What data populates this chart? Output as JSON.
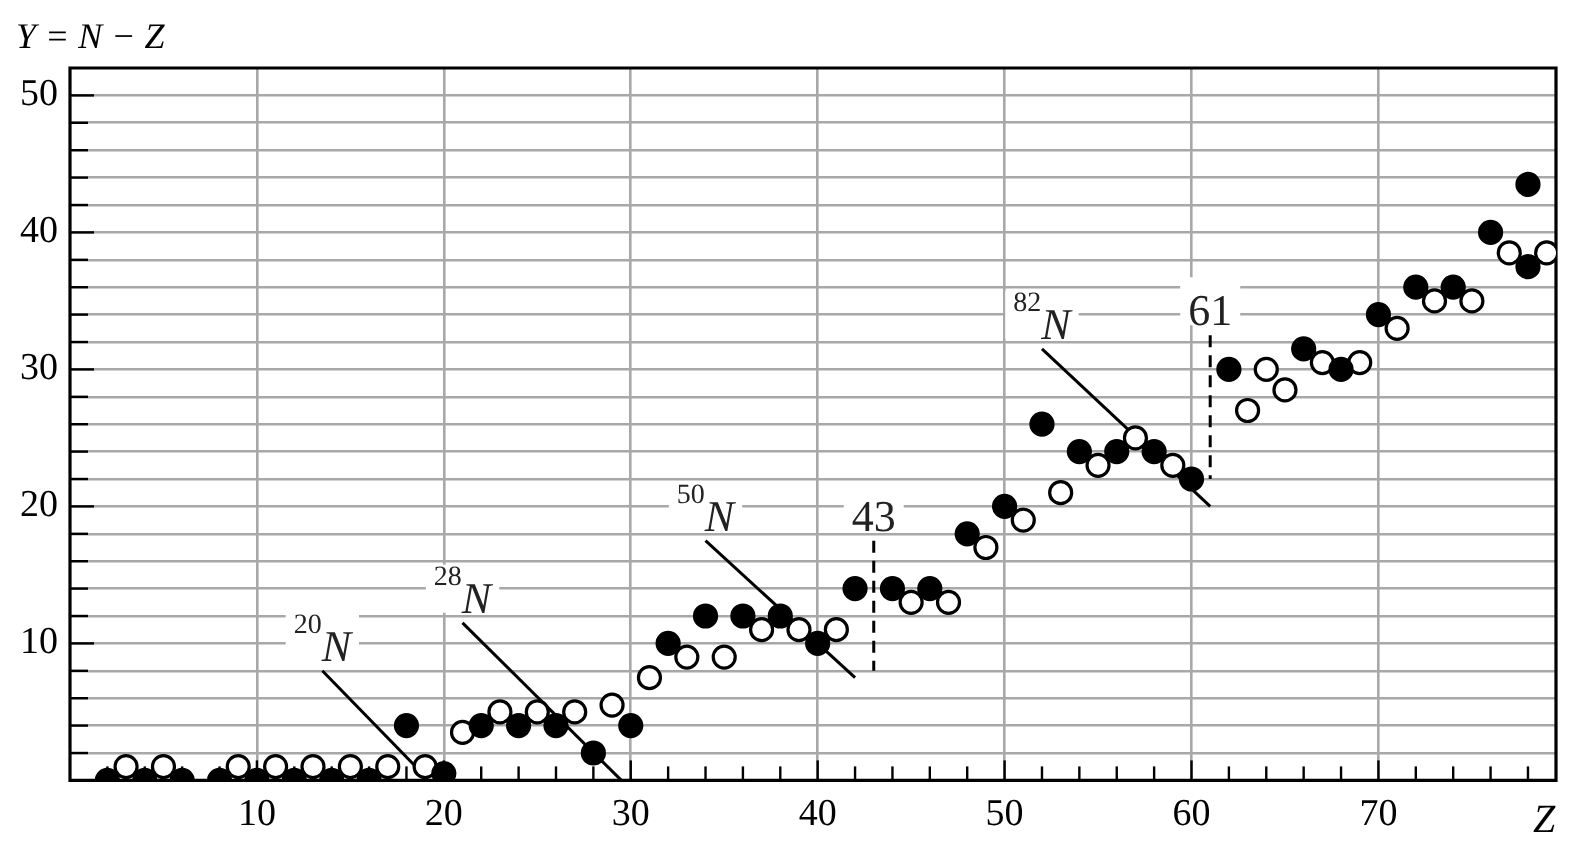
{
  "chart_data": {
    "type": "scatter",
    "ylabel": "Y = N − Z",
    "xlabel": "Z",
    "xlim": [
      0,
      79.5
    ],
    "ylim": [
      0,
      52
    ],
    "xticks": [
      {
        "value": 2,
        "label": null
      },
      {
        "value": 4,
        "label": null
      },
      {
        "value": 6,
        "label": null
      },
      {
        "value": 8,
        "label": null
      },
      10,
      {
        "value": 12,
        "label": null
      },
      {
        "value": 14,
        "label": null
      },
      {
        "value": 16,
        "label": null
      },
      {
        "value": 18,
        "label": null
      },
      20,
      {
        "value": 22,
        "label": null
      },
      {
        "value": 24,
        "label": null
      },
      {
        "value": 26,
        "label": null
      },
      {
        "value": 28,
        "label": null
      },
      30,
      {
        "value": 32,
        "label": null
      },
      {
        "value": 34,
        "label": null
      },
      {
        "value": 36,
        "label": null
      },
      {
        "value": 38,
        "label": null
      },
      40,
      {
        "value": 42,
        "label": null
      },
      {
        "value": 44,
        "label": null
      },
      {
        "value": 46,
        "label": null
      },
      {
        "value": 48,
        "label": null
      },
      50,
      {
        "value": 52,
        "label": null
      },
      {
        "value": 54,
        "label": null
      },
      {
        "value": 56,
        "label": null
      },
      {
        "value": 58,
        "label": null
      },
      60,
      {
        "value": 62,
        "label": null
      },
      {
        "value": 64,
        "label": null
      },
      {
        "value": 66,
        "label": null
      },
      {
        "value": 68,
        "label": null
      },
      70,
      {
        "value": 72,
        "label": null
      },
      {
        "value": 74,
        "label": null
      },
      {
        "value": 76,
        "label": null
      },
      {
        "value": 78,
        "label": null
      }
    ],
    "yticks": [
      {
        "value": 2,
        "label": null
      },
      {
        "value": 4,
        "label": null
      },
      {
        "value": 6,
        "label": null
      },
      {
        "value": 8,
        "label": null
      },
      10,
      {
        "value": 12,
        "label": null
      },
      {
        "value": 14,
        "label": null
      },
      {
        "value": 16,
        "label": null
      },
      {
        "value": 18,
        "label": null
      },
      20,
      {
        "value": 22,
        "label": null
      },
      {
        "value": 24,
        "label": null
      },
      {
        "value": 26,
        "label": null
      },
      {
        "value": 28,
        "label": null
      },
      30,
      {
        "value": 32,
        "label": null
      },
      {
        "value": 34,
        "label": null
      },
      {
        "value": 36,
        "label": null
      },
      {
        "value": 38,
        "label": null
      },
      40,
      {
        "value": 42,
        "label": null
      },
      {
        "value": 44,
        "label": null
      },
      {
        "value": 46,
        "label": null
      },
      {
        "value": 48,
        "label": null
      },
      50
    ],
    "grid": true,
    "legend": false,
    "marker": "circle",
    "series": [
      {
        "color": "#000000",
        "x": [
          2,
          4,
          6,
          8,
          10,
          12,
          14,
          16,
          18,
          20,
          22,
          24,
          26,
          28,
          30,
          32,
          34,
          36,
          38,
          40,
          42,
          44,
          46,
          48,
          50,
          52,
          54,
          56,
          58,
          60,
          62,
          66,
          68,
          70,
          72,
          74,
          76,
          78,
          78
        ],
        "values": [
          0,
          0,
          0,
          0,
          0,
          0,
          0,
          0,
          4,
          0.5,
          4,
          4,
          4,
          2,
          4,
          10,
          12,
          12,
          12,
          10,
          14,
          14,
          14,
          18,
          20,
          26,
          24,
          24,
          24,
          22,
          30,
          31.5,
          30,
          34,
          36,
          36,
          40,
          37.5,
          43.5
        ]
      },
      {
        "color": "#ffffff",
        "x": [
          3,
          5,
          9,
          11,
          13,
          15,
          17,
          19,
          21,
          23,
          25,
          27,
          29,
          31,
          33,
          35,
          37,
          39,
          41,
          45,
          47,
          49,
          51,
          53,
          55,
          57,
          59,
          63,
          64,
          65,
          67,
          69,
          71,
          73,
          75,
          77,
          79
        ],
        "values": [
          1,
          1,
          1,
          1,
          1,
          1,
          1,
          1,
          3.5,
          5,
          5,
          5,
          5.5,
          7.5,
          9,
          9,
          11,
          11,
          11,
          13,
          13,
          17,
          19,
          21,
          23,
          25,
          23,
          27,
          30,
          28.5,
          30.5,
          30.5,
          33,
          35,
          35,
          38.5,
          38.5
        ]
      },
      {
        "type": "line",
        "name": "$^{20}$N",
        "color": "#000000",
        "line_style": "solid",
        "marker": "none",
        "x": [
          13.5,
          18.5
        ],
        "values": [
          8,
          1
        ]
      },
      {
        "type": "line",
        "name": "$^{28}$N",
        "color": "#000000",
        "line_style": "solid",
        "marker": "none",
        "x": [
          21,
          29.5
        ],
        "values": [
          11.5,
          0
        ]
      },
      {
        "type": "line",
        "name": "$^{50}$N",
        "color": "#000000",
        "line_style": "solid",
        "marker": "none",
        "x": [
          34,
          42
        ],
        "values": [
          17.5,
          7.5
        ]
      },
      {
        "type": "line",
        "name": "$^{82}$N",
        "color": "#000000",
        "line_style": "solid",
        "marker": "none",
        "x": [
          52,
          61
        ],
        "values": [
          31.5,
          20
        ]
      },
      {
        "type": "line",
        "name": "43",
        "color": "#000000",
        "line_style": "dashed",
        "marker": "none",
        "x": [
          43,
          43
        ],
        "values": [
          17.5,
          8
        ]
      },
      {
        "type": "line",
        "name": "61",
        "color": "#000000",
        "line_style": "dashed",
        "marker": "none",
        "x": [
          61,
          61
        ],
        "values": [
          32.5,
          22
        ]
      }
    ]
  }
}
